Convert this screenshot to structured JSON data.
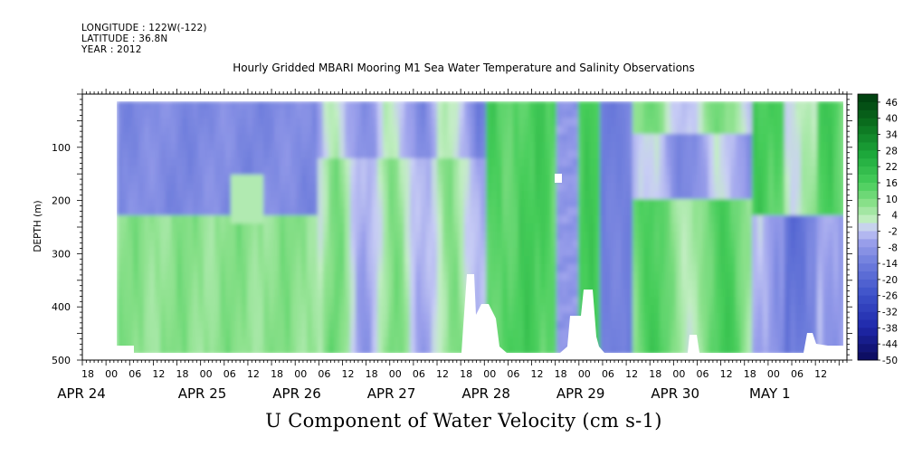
{
  "header": {
    "longitude": "LONGITUDE : 122W(-122)",
    "latitude": "LATITUDE : 36.8N",
    "year": "YEAR : 2012"
  },
  "chart_data": {
    "type": "heatmap",
    "title": "Hourly Gridded MBARI Mooring M1 Sea Water Temperature and Salinity Observations",
    "xlabel": "U Component of Water Velocity (cm s-1)",
    "ylabel": "DEPTH (m)",
    "ylim": [
      500,
      0
    ],
    "y_ticks": [
      100,
      200,
      300,
      400,
      500
    ],
    "x_range_hours": [
      "APR 23 18",
      "MAY 1 18"
    ],
    "x_hour_ticks": [
      "18",
      "00",
      "06",
      "12",
      "18",
      "00",
      "06",
      "12",
      "18",
      "00",
      "06",
      "12",
      "18",
      "00",
      "06",
      "12",
      "18",
      "00",
      "06",
      "12",
      "18",
      "00",
      "06",
      "12",
      "18",
      "00",
      "06",
      "12",
      "18",
      "00",
      "06",
      "12"
    ],
    "x_day_labels": [
      "APR 24",
      "APR 25",
      "APR 26",
      "APR 27",
      "APR 28",
      "APR 29",
      "APR 30",
      "MAY  1"
    ],
    "colorbar": {
      "labels": [
        "46",
        "40",
        "34",
        "28",
        "22",
        "16",
        "10",
        "4",
        "-2",
        "-8",
        "-14",
        "-20",
        "-26",
        "-32",
        "-38",
        "-44",
        "-50"
      ],
      "min": -50,
      "max": 49,
      "step": 3
    },
    "z_summary": {
      "unit": "cm s-1",
      "typical_range": [
        -20,
        25
      ],
      "description": "Upper layer (0-250 m) mostly negative (blue) during Apr 24-26, positive (green) below ~230 m; alternating vertical bands of positive and negative velocity from Apr 27 onward; strong positive values near surface on Apr 30 - May 1."
    }
  }
}
